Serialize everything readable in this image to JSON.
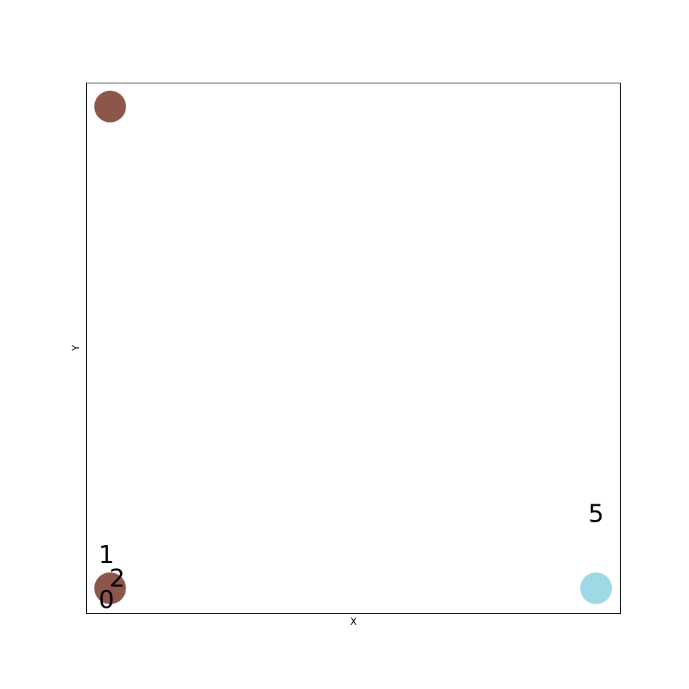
{
  "chart_data": {
    "type": "scatter",
    "title": "",
    "xlabel": "X",
    "ylabel": "Y",
    "xlim": [
      0,
      1
    ],
    "ylim": [
      0,
      1
    ],
    "grid": false,
    "legend": "none",
    "points": [
      {
        "x": 0.045,
        "y": 0.955,
        "color": "#8c564b",
        "label": ""
      },
      {
        "x": 0.045,
        "y": 0.047,
        "color": "#8c564b",
        "label": ""
      },
      {
        "x": 0.955,
        "y": 0.047,
        "color": "#9edae5",
        "label": ""
      }
    ],
    "annotations": [
      {
        "text": "1",
        "x": 0.038,
        "y": 0.11
      },
      {
        "text": "2",
        "x": 0.058,
        "y": 0.065
      },
      {
        "text": "0",
        "x": 0.038,
        "y": 0.025
      },
      {
        "text": "5",
        "x": 0.955,
        "y": 0.187
      }
    ]
  }
}
